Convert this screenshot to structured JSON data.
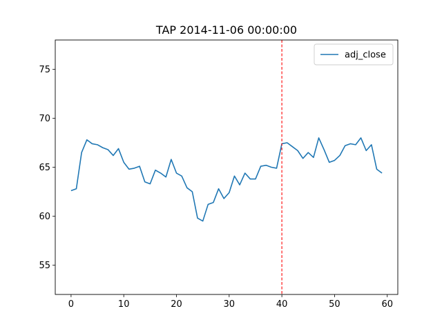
{
  "chart_data": {
    "type": "line",
    "title": "TAP 2014-11-06 00:00:00",
    "xlabel": "",
    "ylabel": "",
    "xlim": [
      -3,
      62
    ],
    "ylim": [
      52,
      78
    ],
    "xticks": [
      0,
      10,
      20,
      30,
      40,
      50,
      60
    ],
    "yticks": [
      55,
      60,
      65,
      70,
      75
    ],
    "grid": false,
    "legend_position": "top-right",
    "series": [
      {
        "name": "adj_close",
        "color": "#1f77b4",
        "x": [
          0,
          1,
          2,
          3,
          4,
          5,
          6,
          7,
          8,
          9,
          10,
          11,
          12,
          13,
          14,
          15,
          16,
          17,
          18,
          19,
          20,
          21,
          22,
          23,
          24,
          25,
          26,
          27,
          28,
          29,
          30,
          31,
          32,
          33,
          34,
          35,
          36,
          37,
          38,
          39,
          40,
          41,
          42,
          43,
          44,
          45,
          46,
          47,
          48,
          49,
          50,
          51,
          52,
          53,
          54,
          55,
          56,
          57,
          58,
          59
        ],
        "values": [
          62.6,
          62.8,
          66.5,
          67.8,
          67.4,
          67.3,
          67.0,
          66.8,
          66.2,
          66.9,
          65.5,
          64.8,
          64.9,
          65.1,
          63.5,
          63.3,
          64.7,
          64.4,
          64.0,
          65.8,
          64.4,
          64.1,
          62.9,
          62.5,
          59.8,
          59.5,
          61.2,
          61.4,
          62.8,
          61.8,
          62.4,
          64.1,
          63.2,
          64.4,
          63.8,
          63.8,
          65.1,
          65.2,
          65.0,
          64.9,
          67.4,
          67.5,
          67.1,
          66.7,
          65.9,
          66.5,
          66.0,
          68.0,
          66.8,
          65.5,
          65.7,
          66.2,
          67.2,
          67.4,
          67.3,
          68.0,
          66.7,
          67.3,
          64.8,
          64.4
        ]
      }
    ],
    "vline": {
      "x": 40,
      "color": "#ff0000",
      "style": "dashed"
    }
  }
}
